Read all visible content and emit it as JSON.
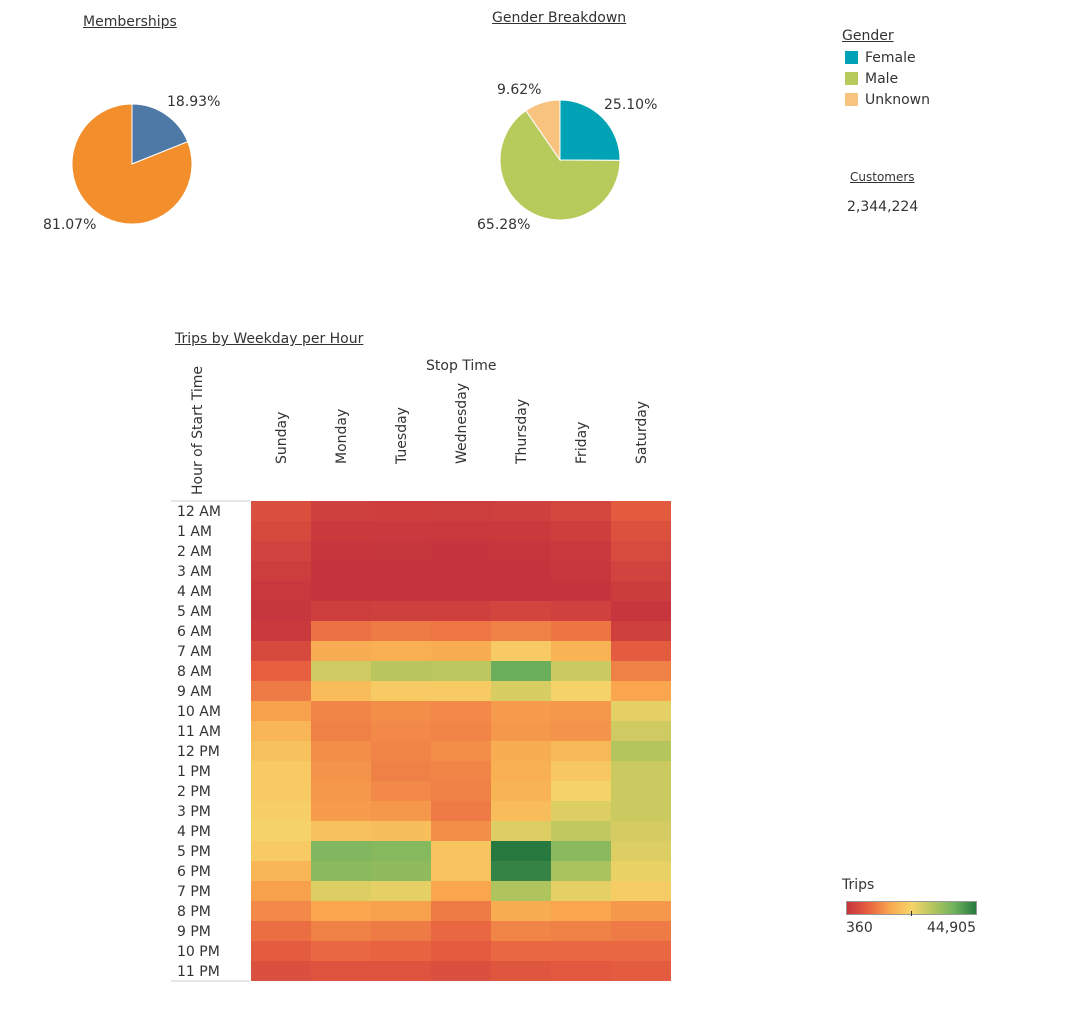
{
  "colors": {
    "member": "#4e79a7",
    "nonmember": "#f28e2b",
    "female": "#00a2b6",
    "male": "#b7cb5c",
    "unknown": "#f7c37f",
    "scale": [
      "#c4333d",
      "#e8613f",
      "#f9a84f",
      "#f6d468",
      "#b4c55e",
      "#6fb25e",
      "#27793f"
    ]
  },
  "memberships": {
    "title": "Memberships",
    "labels": [
      "18.93%",
      "81.07%"
    ]
  },
  "gender": {
    "title": "Gender Breakdown",
    "labels": [
      "25.10%",
      "65.28%",
      "9.62%"
    ]
  },
  "legend": {
    "title": "Gender",
    "items": [
      {
        "label": "Female",
        "color": "#00a2b6"
      },
      {
        "label": "Male",
        "color": "#b7cb5c"
      },
      {
        "label": "Unknown",
        "color": "#f7c37f"
      }
    ]
  },
  "customers": {
    "title": "Customers",
    "value": "2,344,224"
  },
  "trips_legend": {
    "title": "Trips",
    "min": "360",
    "max": "44,905"
  },
  "chart_data": [
    {
      "type": "pie",
      "title": "Memberships",
      "slices": [
        {
          "value": 18.93,
          "color": "#4e79a7"
        },
        {
          "value": 81.07,
          "color": "#f28e2b"
        }
      ]
    },
    {
      "type": "pie",
      "title": "Gender Breakdown",
      "slices": [
        {
          "name": "Female",
          "value": 25.1,
          "color": "#00a2b6"
        },
        {
          "name": "Male",
          "value": 65.28,
          "color": "#b7cb5c"
        },
        {
          "name": "Unknown",
          "value": 9.62,
          "color": "#f7c37f"
        }
      ]
    },
    {
      "type": "heatmap",
      "title": "Trips by Weekday per Hour",
      "xlabel": "Stop Time",
      "ylabel": "Hour of Start Time",
      "columns": [
        "Sunday",
        "Monday",
        "Tuesday",
        "Wednesday",
        "Thursday",
        "Friday",
        "Saturday"
      ],
      "rows": [
        "12 AM",
        "1 AM",
        "2 AM",
        "3 AM",
        "4 AM",
        "5 AM",
        "6 AM",
        "7 AM",
        "8 AM",
        "9 AM",
        "10 AM",
        "11 AM",
        "12 PM",
        "1 PM",
        "2 PM",
        "3 PM",
        "4 PM",
        "5 PM",
        "6 PM",
        "7 PM",
        "8 PM",
        "9 PM",
        "10 PM",
        "11 PM"
      ],
      "value_range": [
        360,
        44905
      ],
      "values": [
        [
          5000,
          2500,
          2200,
          2000,
          2400,
          3600,
          6800
        ],
        [
          4000,
          1500,
          1300,
          1200,
          1500,
          2200,
          5200
        ],
        [
          3000,
          900,
          800,
          700,
          900,
          1500,
          4200
        ],
        [
          2000,
          600,
          500,
          500,
          600,
          1000,
          3000
        ],
        [
          1200,
          500,
          500,
          500,
          500,
          700,
          1800
        ],
        [
          800,
          2000,
          2500,
          2400,
          3200,
          2600,
          900
        ],
        [
          1500,
          9500,
          10500,
          10000,
          11000,
          9800,
          2500
        ],
        [
          4000,
          16000,
          16500,
          16000,
          21000,
          17000,
          7000
        ],
        [
          7500,
          27000,
          29500,
          29000,
          38000,
          27500,
          11000
        ],
        [
          10500,
          18500,
          21000,
          21000,
          26000,
          22500,
          15000
        ],
        [
          14500,
          11500,
          12500,
          12000,
          14000,
          13500,
          24500
        ],
        [
          17500,
          11000,
          12000,
          11500,
          13500,
          13000,
          27000
        ],
        [
          19500,
          12500,
          11500,
          12500,
          16000,
          18000,
          30000
        ],
        [
          21000,
          13000,
          11000,
          11500,
          16500,
          20500,
          27500
        ],
        [
          21000,
          13500,
          12000,
          11000,
          17000,
          22500,
          27500
        ],
        [
          22000,
          14000,
          13500,
          10500,
          18500,
          25500,
          27500
        ],
        [
          22500,
          19500,
          19000,
          12500,
          25500,
          28500,
          26500
        ],
        [
          21000,
          35500,
          35000,
          20000,
          44905,
          34500,
          25500
        ],
        [
          17500,
          34500,
          34000,
          20000,
          43500,
          31000,
          24000
        ],
        [
          14500,
          25500,
          24500,
          15000,
          30500,
          24500,
          21500
        ],
        [
          12000,
          15000,
          14500,
          10500,
          16000,
          15000,
          13500
        ],
        [
          9000,
          11000,
          10500,
          8500,
          11500,
          11000,
          10500
        ],
        [
          7000,
          8500,
          8000,
          7000,
          8500,
          8500,
          8500
        ],
        [
          5000,
          5500,
          5500,
          5000,
          6000,
          6500,
          7000
        ]
      ]
    }
  ]
}
